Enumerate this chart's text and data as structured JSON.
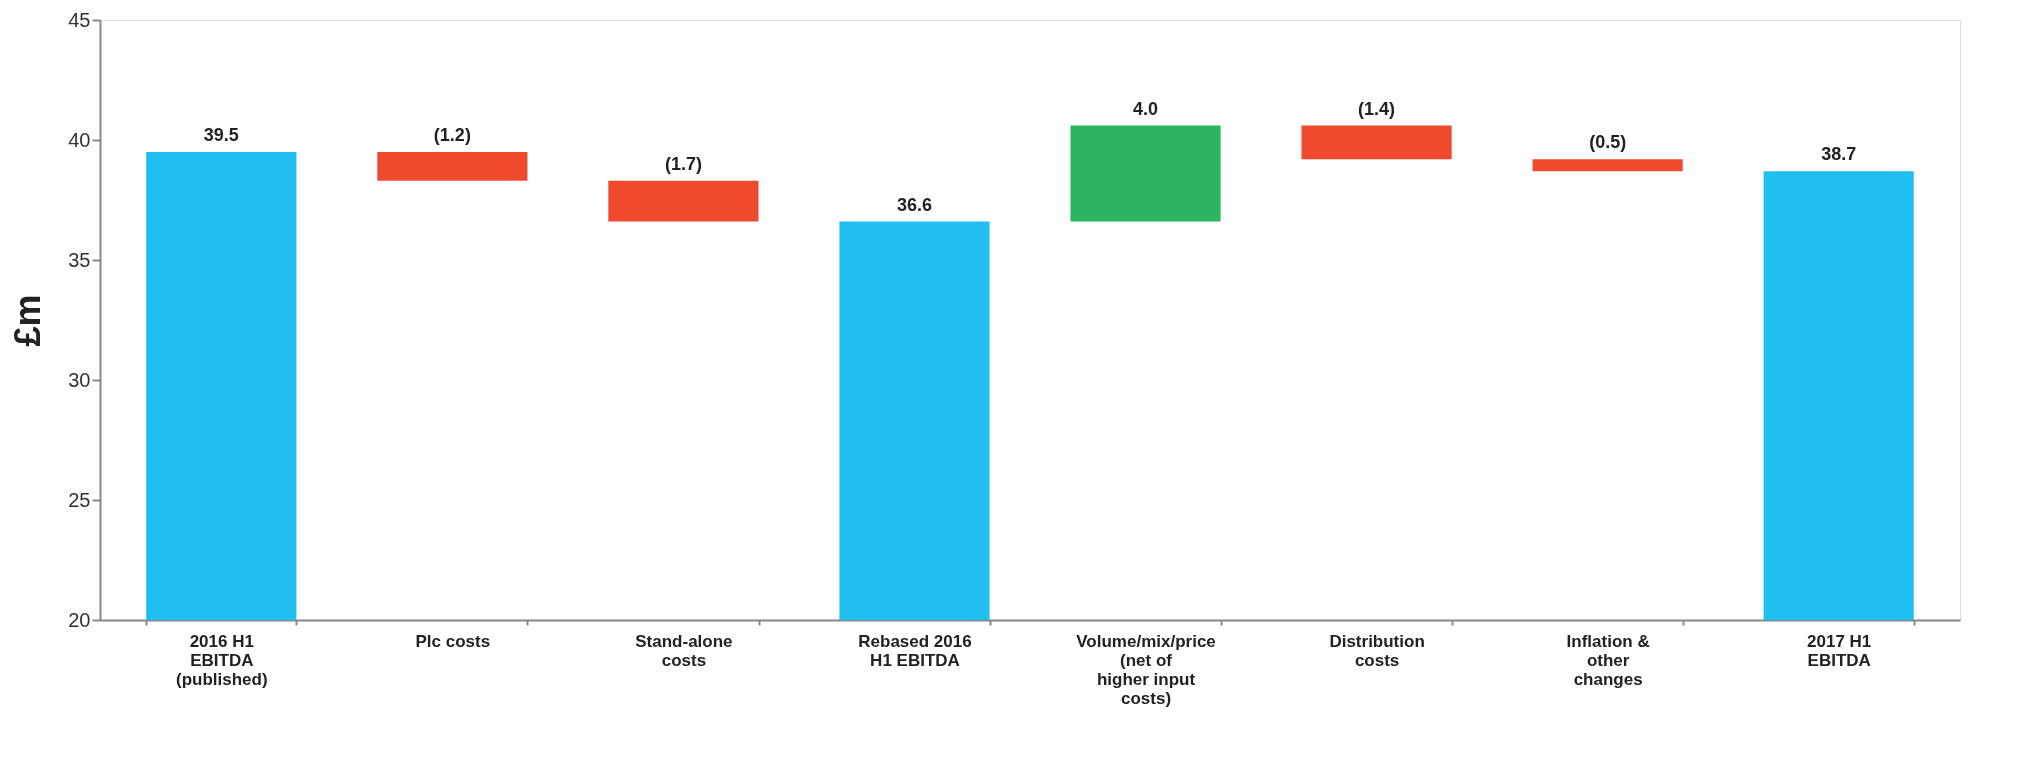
{
  "chart_data": {
    "type": "bar",
    "ylabel": "£m",
    "categories": [
      "2016 H1 EBITDA (published)",
      "Plc costs",
      "Stand-alone costs",
      "Rebased 2016 H1 EBITDA",
      "Volume/mix/price (net of higher input costs)",
      "Distribution costs",
      "Inflation & other changes",
      "2017 H1 EBITDA"
    ],
    "values": [
      39.5,
      -1.2,
      -1.7,
      36.6,
      4.0,
      -1.4,
      -0.5,
      38.7
    ],
    "base": [
      null,
      39.5,
      38.3,
      null,
      36.6,
      40.6,
      39.2,
      null
    ],
    "colors": [
      "#1fbff0",
      "#f04a2e",
      "#f04a2e",
      "#1fbff0",
      "#2db562",
      "#f04a2e",
      "#f04a2e",
      "#1fbff0"
    ],
    "value_labels": [
      "39.5",
      "(1.2)",
      "(1.7)",
      "36.6",
      "4.0",
      "(1.4)",
      "(0.5)",
      "38.7"
    ],
    "ylim": [
      20,
      45
    ],
    "yticks": [
      20,
      25,
      30,
      35,
      40,
      45
    ],
    "grid": false
  }
}
